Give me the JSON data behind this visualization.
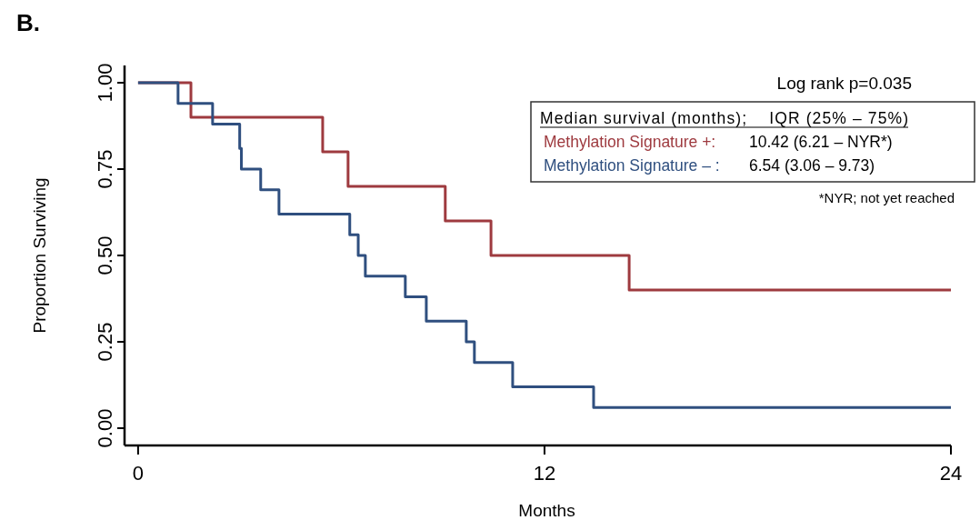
{
  "chart_data": {
    "type": "step",
    "title": "B.",
    "xlabel": "Months",
    "ylabel": "Proportion Surviving",
    "xlim": [
      -0.4,
      24
    ],
    "xticks": [
      0,
      12,
      24
    ],
    "ylim": [
      -0.05,
      1.05
    ],
    "yticks": [
      {
        "value": 0,
        "label": "0.00"
      },
      {
        "value": 0.25,
        "label": "0.25"
      },
      {
        "value": 0.5,
        "label": "0.50"
      },
      {
        "value": 0.75,
        "label": "0.75"
      },
      {
        "value": 1,
        "label": "1.00"
      }
    ],
    "grid": false,
    "legend": "top right",
    "line_style": "solid",
    "marker": "none",
    "series": [
      {
        "name": "Methylation Signature +:",
        "color": "#9e3a3f",
        "x": [
          0,
          1.56,
          5.45,
          6.2,
          9.07,
          10.42,
          14.5,
          24
        ],
        "values": [
          1,
          0.9,
          0.8,
          0.7,
          0.6,
          0.5,
          0.4,
          0.4
        ]
      },
      {
        "name": "Methylation Signature – :",
        "color": "#2f4f7f",
        "x": [
          0,
          1.18,
          2.2,
          3.0,
          3.05,
          3.62,
          4.16,
          6.25,
          6.5,
          6.71,
          7.89,
          8.51,
          9.69,
          9.93,
          11.06,
          13.45,
          24
        ],
        "values": [
          1,
          0.94,
          0.88,
          0.81,
          0.75,
          0.69,
          0.62,
          0.56,
          0.5,
          0.44,
          0.38,
          0.31,
          0.25,
          0.19,
          0.12,
          0.06,
          0.06
        ]
      }
    ],
    "annotations": [
      "Log rank p=0.035",
      "Median survival (months);    IQR (25% – 75%)",
      "10.42  (6.21 – NYR*)",
      "6.54  (3.06 – 9.73)",
      "*NYR; not yet reached"
    ]
  }
}
